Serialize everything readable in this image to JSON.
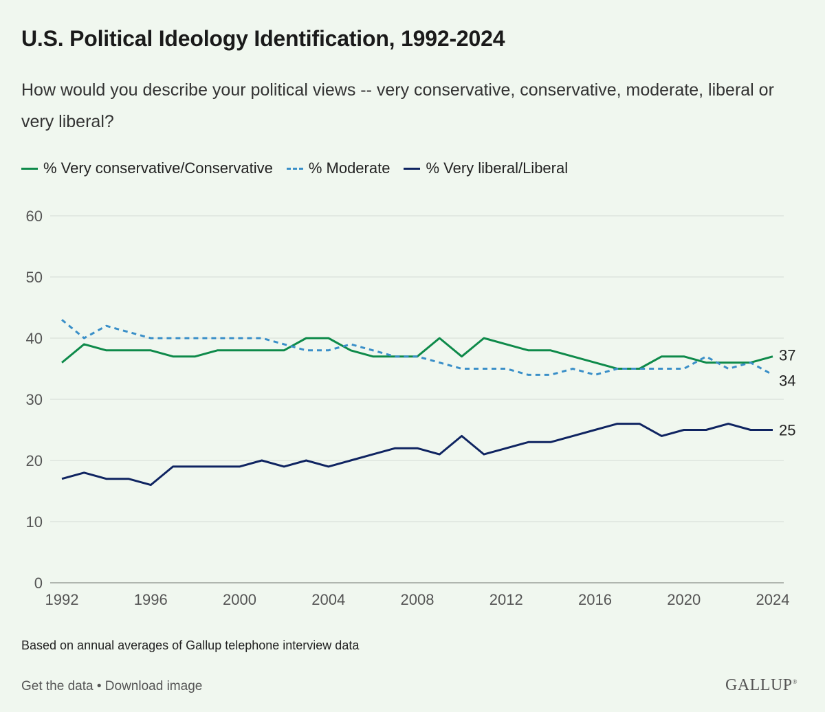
{
  "title": "U.S. Political Ideology Identification, 1992-2024",
  "subtitle": "How would you describe your political views -- very conservative, conservative, moderate, liberal or very liberal?",
  "note": "Based on annual averages of Gallup telephone interview data",
  "footer": {
    "get_data": "Get the data",
    "separator": " • ",
    "download": "Download image"
  },
  "logo": {
    "text": "GALLUP",
    "mark": "®"
  },
  "colors": {
    "conservative": "#0e8a4a",
    "moderate": "#3a8fc8",
    "liberal": "#0f2461",
    "grid": "#d5dbd5",
    "tick": "#555555",
    "background": "#f0f7ef"
  },
  "chart_data": {
    "type": "line",
    "title": "U.S. Political Ideology Identification, 1992-2024",
    "xlabel": "",
    "ylabel": "",
    "ylim": [
      0,
      60
    ],
    "yticks": [
      0,
      10,
      20,
      30,
      40,
      50,
      60
    ],
    "xlim": [
      1992,
      2024
    ],
    "xticks": [
      1992,
      1996,
      2000,
      2004,
      2008,
      2012,
      2016,
      2020,
      2024
    ],
    "grid": true,
    "legend_position": "top-left",
    "x": [
      1992,
      1993,
      1994,
      1995,
      1996,
      1997,
      1998,
      1999,
      2000,
      2001,
      2002,
      2003,
      2004,
      2005,
      2006,
      2007,
      2008,
      2009,
      2010,
      2011,
      2012,
      2013,
      2014,
      2015,
      2016,
      2017,
      2018,
      2019,
      2020,
      2021,
      2022,
      2023,
      2024
    ],
    "series": [
      {
        "name": "% Very conservative/Conservative",
        "key": "conservative",
        "style": "solid",
        "values": [
          36,
          39,
          38,
          38,
          38,
          37,
          37,
          38,
          38,
          38,
          38,
          40,
          40,
          38,
          37,
          37,
          37,
          40,
          37,
          40,
          39,
          38,
          38,
          37,
          36,
          35,
          35,
          37,
          37,
          36,
          36,
          36,
          37
        ],
        "end_label": "37"
      },
      {
        "name": "% Moderate",
        "key": "moderate",
        "style": "dashed",
        "values": [
          43,
          40,
          42,
          41,
          40,
          40,
          40,
          40,
          40,
          40,
          39,
          38,
          38,
          39,
          38,
          37,
          37,
          36,
          35,
          35,
          35,
          34,
          34,
          35,
          34,
          35,
          35,
          35,
          35,
          37,
          35,
          36,
          34
        ],
        "end_label": "34"
      },
      {
        "name": "% Very liberal/Liberal",
        "key": "liberal",
        "style": "solid",
        "values": [
          17,
          18,
          17,
          17,
          16,
          19,
          19,
          19,
          19,
          20,
          19,
          20,
          19,
          20,
          21,
          22,
          22,
          21,
          24,
          21,
          22,
          23,
          23,
          24,
          25,
          26,
          26,
          24,
          25,
          25,
          26,
          25,
          25
        ],
        "end_label": "25"
      }
    ]
  }
}
